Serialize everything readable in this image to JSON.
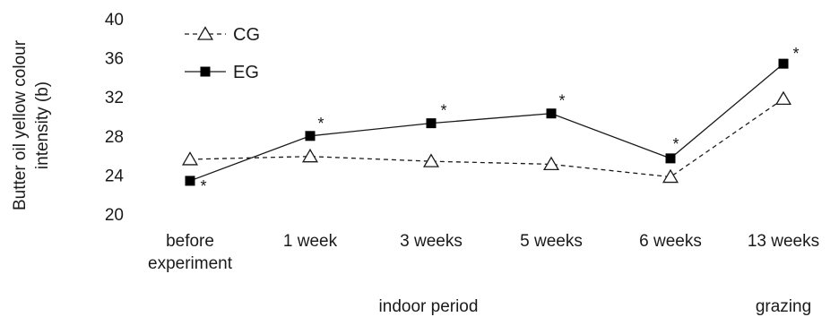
{
  "chart_data": {
    "type": "line",
    "title": "",
    "ylabel": "Butter oil yellow colour intensity (b)",
    "ylabel_lines": [
      "Butter oil yellow colour",
      "intensity (b)"
    ],
    "ylim": [
      20,
      40
    ],
    "yticks": [
      20,
      24,
      28,
      32,
      36,
      40
    ],
    "categories": [
      "before experiment",
      "1 week",
      "3 weeks",
      "5 weeks",
      "6 weeks",
      "13 weeks"
    ],
    "category_lines": [
      [
        "before",
        "experiment"
      ],
      [
        "1 week"
      ],
      [
        "3 weeks"
      ],
      [
        "5 weeks"
      ],
      [
        "6 weeks"
      ],
      [
        "13 weeks"
      ]
    ],
    "period_labels": [
      "indoor period",
      "grazing"
    ],
    "grid": false,
    "legend_position": "top-left",
    "series": [
      {
        "name": "CG",
        "marker": "open-triangle",
        "line_style": "dashed",
        "values": [
          25.6,
          25.9,
          25.4,
          25.1,
          23.8,
          31.8
        ],
        "significant": [
          false,
          false,
          false,
          false,
          false,
          false
        ]
      },
      {
        "name": "EG",
        "marker": "filled-square",
        "line_style": "solid",
        "values": [
          23.4,
          28.0,
          29.3,
          30.3,
          25.7,
          35.4
        ],
        "significant": [
          true,
          true,
          true,
          true,
          true,
          true
        ]
      }
    ],
    "significance_marker": "*"
  }
}
